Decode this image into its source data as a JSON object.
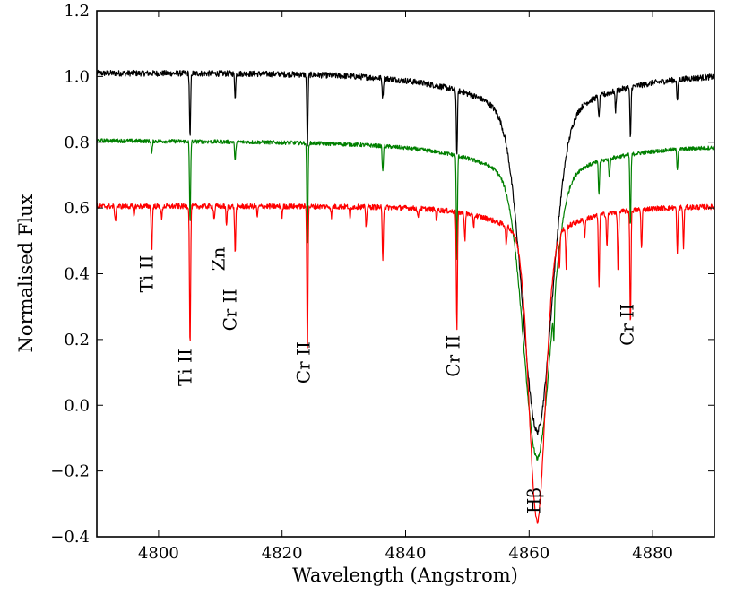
{
  "chart_data": {
    "type": "line",
    "title": "",
    "xlabel": "Wavelength (Angstrom)",
    "ylabel": "Normalised Flux",
    "xlim": [
      4790,
      4890
    ],
    "ylim": [
      -0.4,
      1.2
    ],
    "grid": false,
    "legend": "none",
    "xticks": [
      4800,
      4820,
      4840,
      4860,
      4880
    ],
    "xtick_labels": [
      "4800",
      "4820",
      "4840",
      "4860",
      "4880"
    ],
    "yticks": [
      -0.4,
      -0.2,
      0.0,
      0.2,
      0.4,
      0.6,
      0.8,
      1.0,
      1.2
    ],
    "ytick_labels": [
      "−0.4",
      "−0.2",
      "0.0",
      "0.2",
      "0.4",
      "0.6",
      "0.8",
      "1.0",
      "1.2"
    ],
    "series": [
      {
        "name": "black spectrum",
        "color": "#000000",
        "continuum": 1.01,
        "noise": 0.009,
        "tilt": 0.0,
        "balmer": {
          "center": 4861.3,
          "depth": 0.9,
          "width": 2.4,
          "wing_depth": 0.55,
          "wing_width": 10.0
        },
        "lines": [
          {
            "wl": 4805.1,
            "depth": 0.2
          },
          {
            "wl": 4812.4,
            "depth": 0.07
          },
          {
            "wl": 4824.1,
            "depth": 0.22
          },
          {
            "wl": 4836.3,
            "depth": 0.06
          },
          {
            "wl": 4848.3,
            "depth": 0.2
          },
          {
            "wl": 4871.3,
            "depth": 0.07
          },
          {
            "wl": 4874.0,
            "depth": 0.06
          },
          {
            "wl": 4876.4,
            "depth": 0.16
          },
          {
            "wl": 4884.0,
            "depth": 0.07
          }
        ]
      },
      {
        "name": "green spectrum",
        "color": "#008000",
        "continuum": 0.805,
        "noise": 0.006,
        "tilt": -0.00015,
        "balmer": {
          "center": 4861.3,
          "depth": 0.8,
          "width": 2.2,
          "wing_depth": 0.45,
          "wing_width": 9.0
        },
        "lines": [
          {
            "wl": 4798.9,
            "depth": 0.04
          },
          {
            "wl": 4805.1,
            "depth": 0.25
          },
          {
            "wl": 4812.4,
            "depth": 0.06
          },
          {
            "wl": 4824.1,
            "depth": 0.32
          },
          {
            "wl": 4836.3,
            "depth": 0.08
          },
          {
            "wl": 4848.3,
            "depth": 0.32
          },
          {
            "wl": 4864.0,
            "depth": 0.1
          },
          {
            "wl": 4871.3,
            "depth": 0.1
          },
          {
            "wl": 4873.0,
            "depth": 0.06
          },
          {
            "wl": 4876.4,
            "depth": 0.22
          },
          {
            "wl": 4884.0,
            "depth": 0.06
          }
        ]
      },
      {
        "name": "red spectrum",
        "color": "#ff0000",
        "continuum": 0.605,
        "noise": 0.008,
        "tilt": 0.0,
        "balmer": {
          "center": 4861.3,
          "depth": 0.83,
          "width": 1.3,
          "wing_depth": 0.37,
          "wing_width": 6.5
        },
        "lines": [
          {
            "wl": 4793.0,
            "depth": 0.05
          },
          {
            "wl": 4796.0,
            "depth": 0.03
          },
          {
            "wl": 4798.9,
            "depth": 0.14
          },
          {
            "wl": 4800.5,
            "depth": 0.04
          },
          {
            "wl": 4805.1,
            "depth": 0.43
          },
          {
            "wl": 4809.0,
            "depth": 0.04
          },
          {
            "wl": 4811.0,
            "depth": 0.06
          },
          {
            "wl": 4812.4,
            "depth": 0.14
          },
          {
            "wl": 4816.0,
            "depth": 0.03
          },
          {
            "wl": 4820.0,
            "depth": 0.03
          },
          {
            "wl": 4824.1,
            "depth": 0.44
          },
          {
            "wl": 4828.0,
            "depth": 0.03
          },
          {
            "wl": 4831.0,
            "depth": 0.04
          },
          {
            "wl": 4833.6,
            "depth": 0.06
          },
          {
            "wl": 4836.3,
            "depth": 0.16
          },
          {
            "wl": 4842.0,
            "depth": 0.03
          },
          {
            "wl": 4845.0,
            "depth": 0.03
          },
          {
            "wl": 4848.3,
            "depth": 0.36
          },
          {
            "wl": 4849.6,
            "depth": 0.08
          },
          {
            "wl": 4851.0,
            "depth": 0.04
          },
          {
            "wl": 4856.3,
            "depth": 0.06
          },
          {
            "wl": 4864.9,
            "depth": 0.1
          },
          {
            "wl": 4866.0,
            "depth": 0.12
          },
          {
            "wl": 4869.0,
            "depth": 0.05
          },
          {
            "wl": 4871.3,
            "depth": 0.22
          },
          {
            "wl": 4872.6,
            "depth": 0.1
          },
          {
            "wl": 4874.4,
            "depth": 0.18
          },
          {
            "wl": 4876.4,
            "depth": 0.35
          },
          {
            "wl": 4878.2,
            "depth": 0.12
          },
          {
            "wl": 4884.0,
            "depth": 0.14
          },
          {
            "wl": 4885.0,
            "depth": 0.12
          }
        ]
      }
    ],
    "annotations": [
      {
        "text": "Ti II",
        "x": 4799.1,
        "y": 0.4
      },
      {
        "text": "Ti II",
        "x": 4805.3,
        "y": 0.115
      },
      {
        "text": "Cr II",
        "x": 4812.6,
        "y": 0.29
      },
      {
        "text": "Zn",
        "x": 4810.7,
        "y": 0.445
      },
      {
        "text": "Cr II",
        "x": 4824.5,
        "y": 0.13
      },
      {
        "text": "Cr II",
        "x": 4848.7,
        "y": 0.15
      },
      {
        "text": "Cr II",
        "x": 4876.9,
        "y": 0.245
      },
      {
        "text": "Hβ",
        "x": 4861.8,
        "y": -0.29
      }
    ]
  }
}
